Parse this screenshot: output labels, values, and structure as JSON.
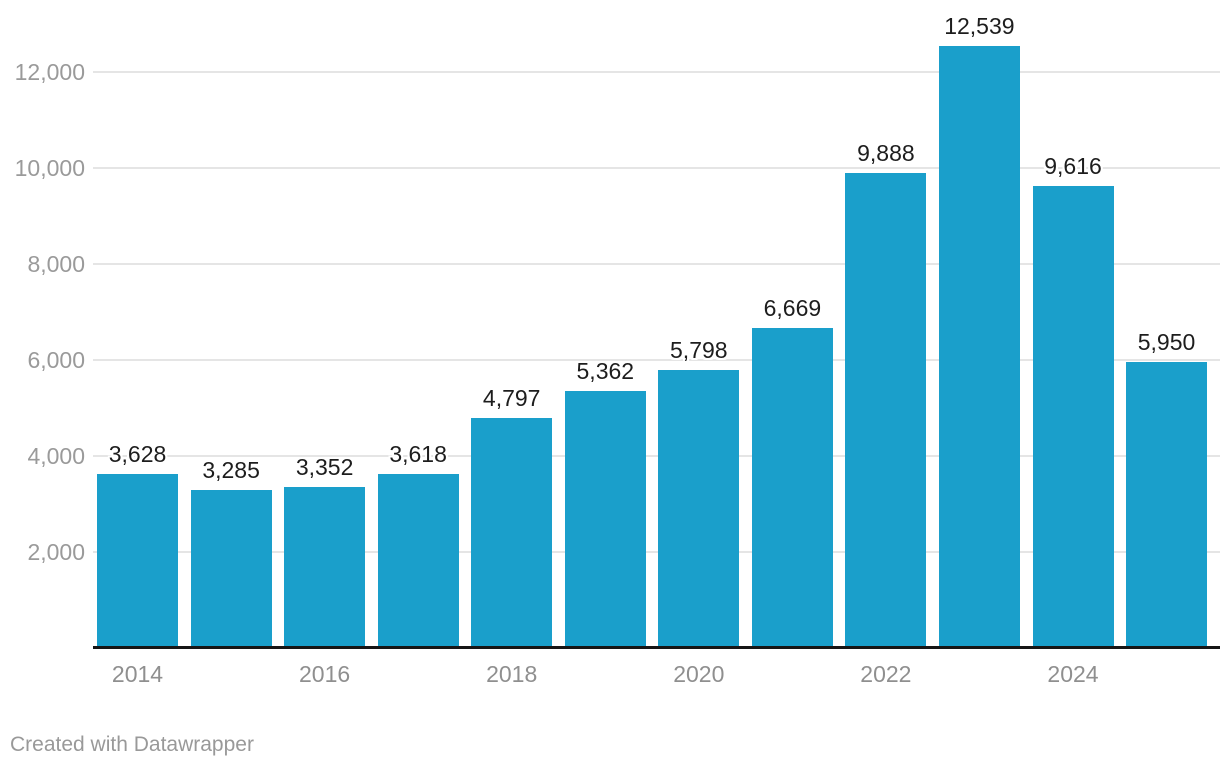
{
  "chart_data": {
    "type": "bar",
    "title": "",
    "xlabel": "",
    "ylabel": "",
    "legend": "none",
    "grid": "horizontal",
    "categories": [
      "2014",
      "2015",
      "2016",
      "2017",
      "2018",
      "2019",
      "2020",
      "2021",
      "2022",
      "2023",
      "2024",
      "2025"
    ],
    "values": [
      3628,
      3285,
      3352,
      3618,
      4797,
      5362,
      5798,
      6669,
      9888,
      12539,
      9616,
      5950
    ],
    "value_labels": [
      "3,628",
      "3,285",
      "3,352",
      "3,618",
      "4,797",
      "5,362",
      "5,798",
      "6,669",
      "9,888",
      "12,539",
      "9,616",
      "5,950"
    ],
    "x_tick_labels": [
      "2014",
      "2016",
      "2018",
      "2020",
      "2022",
      "2024"
    ],
    "y_ticks": [
      2000,
      4000,
      6000,
      8000,
      10000,
      12000
    ],
    "y_tick_labels": [
      "2,000",
      "4,000",
      "6,000",
      "8,000",
      "10,000",
      "12,000"
    ],
    "ylim": [
      0,
      12800
    ],
    "bar_color": "#1A9FCB"
  },
  "colors": {
    "bar": "#1A9FCB",
    "value_label": "#1D1D1D",
    "axis_label": "#969696",
    "gridline": "#E5E5E5",
    "baseline": "#161616",
    "background": "#FFFFFF",
    "attribution": "#999999"
  },
  "footer": {
    "attribution": "Created with Datawrapper"
  }
}
